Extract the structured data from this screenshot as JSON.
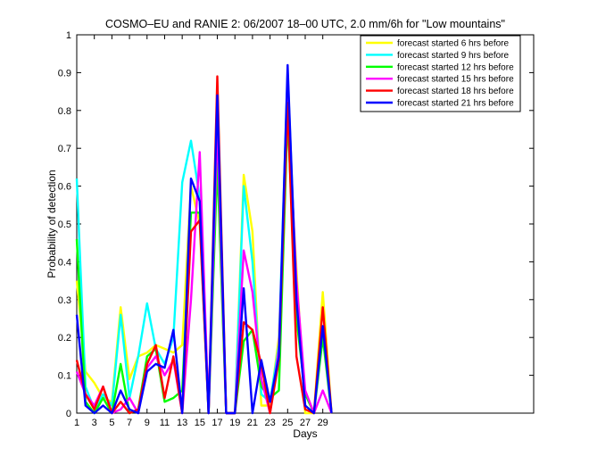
{
  "chart_data": {
    "type": "line",
    "title": "COSMO–EU and RANIE 2: 06/2007 18–00 UTC, 2.0 mm/6h for \"Low mountains\"",
    "xlabel": "Days",
    "ylabel": "Probability of detection",
    "xlim": [
      1,
      53
    ],
    "ylim": [
      0,
      1
    ],
    "xticks": [
      1,
      3,
      5,
      7,
      9,
      11,
      13,
      15,
      17,
      19,
      21,
      23,
      25,
      27,
      29
    ],
    "yticks": [
      0,
      0.1,
      0.2,
      0.3,
      0.4,
      0.5,
      0.6,
      0.7,
      0.8,
      0.9,
      1
    ],
    "ytick_labels": [
      "0",
      "0.1",
      "0.2",
      "0.3",
      "0.4",
      "0.5",
      "0.6",
      "0.7",
      "0.8",
      "0.9",
      "1"
    ],
    "grid": false,
    "legend_position": "top-right",
    "x": [
      1,
      2,
      3,
      4,
      5,
      6,
      7,
      8,
      9,
      10,
      11,
      12,
      13,
      14,
      15,
      16,
      17,
      18,
      19,
      20,
      21,
      22,
      23,
      24,
      25,
      26,
      27,
      28,
      29,
      30
    ],
    "series": [
      {
        "name": "forecast started 6 hrs before",
        "color": "#ffff00",
        "values": [
          0.35,
          0.11,
          0.08,
          0.04,
          0.03,
          0.28,
          0.09,
          0.15,
          0.16,
          0.18,
          0.17,
          0.16,
          0.18,
          0.6,
          0.5,
          0.01,
          0.7,
          0.0,
          0.0,
          0.63,
          0.48,
          0.02,
          0.02,
          0.2,
          0.78,
          0.38,
          0.0,
          0.0,
          0.32,
          0.0
        ]
      },
      {
        "name": "forecast started 9 hrs before",
        "color": "#00ffff",
        "values": [
          0.62,
          0.07,
          0.01,
          0.05,
          0.02,
          0.26,
          0.04,
          0.15,
          0.29,
          0.17,
          0.13,
          0.2,
          0.61,
          0.72,
          0.57,
          0.0,
          0.79,
          0.0,
          0.0,
          0.6,
          0.4,
          0.05,
          0.03,
          0.18,
          0.9,
          0.32,
          0.02,
          0.0,
          0.23,
          0.0
        ]
      },
      {
        "name": "forecast started 12 hrs before",
        "color": "#00ff00",
        "values": [
          0.46,
          0.03,
          0.0,
          0.04,
          0.0,
          0.13,
          0.0,
          0.01,
          0.15,
          0.17,
          0.03,
          0.04,
          0.06,
          0.53,
          0.53,
          0.0,
          0.66,
          0.0,
          0.0,
          0.19,
          0.22,
          0.07,
          0.04,
          0.06,
          0.79,
          0.25,
          0.05,
          0.0,
          0.2,
          0.0
        ]
      },
      {
        "name": "forecast started 15 hrs before",
        "color": "#ff00ff",
        "values": [
          0.11,
          0.05,
          0.02,
          0.07,
          0.0,
          0.01,
          0.04,
          0.0,
          0.12,
          0.15,
          0.1,
          0.14,
          0.0,
          0.3,
          0.69,
          0.0,
          0.76,
          0.0,
          0.0,
          0.43,
          0.32,
          0.09,
          0.0,
          0.17,
          0.84,
          0.35,
          0.06,
          0.0,
          0.06,
          0.0
        ]
      },
      {
        "name": "forecast started 18 hrs before",
        "color": "#ff0000",
        "values": [
          0.14,
          0.05,
          0.01,
          0.07,
          0.0,
          0.03,
          0.0,
          0.01,
          0.13,
          0.18,
          0.04,
          0.15,
          0.0,
          0.48,
          0.51,
          0.0,
          0.89,
          0.0,
          0.0,
          0.24,
          0.22,
          0.13,
          0.0,
          0.14,
          0.82,
          0.15,
          0.01,
          0.0,
          0.28,
          0.0
        ]
      },
      {
        "name": "forecast started 21 hrs before",
        "color": "#0000ff",
        "values": [
          0.26,
          0.02,
          0.0,
          0.02,
          0.0,
          0.06,
          0.01,
          0.0,
          0.11,
          0.13,
          0.12,
          0.22,
          0.0,
          0.62,
          0.56,
          0.0,
          0.84,
          0.0,
          0.0,
          0.33,
          0.0,
          0.14,
          0.03,
          0.15,
          0.92,
          0.3,
          0.02,
          0.0,
          0.23,
          0.0
        ]
      }
    ]
  }
}
